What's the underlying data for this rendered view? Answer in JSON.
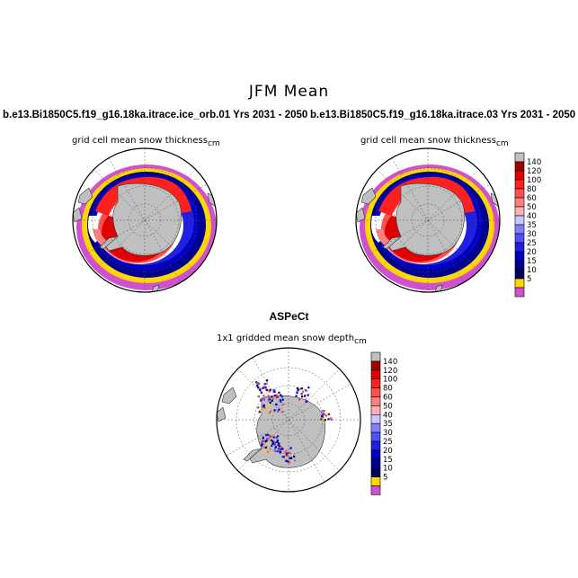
{
  "page_title": "JFM Mean",
  "units": "cm",
  "chart_data": [
    {
      "type": "heatmap",
      "id": "panel-left",
      "title": "b.e13.Bi1850C5.f19_g16.18ka.itrace.ice_orb.01  Yrs 2031 - 2050",
      "subtitle": "grid cell mean snow thickness",
      "projection": "south-polar-stereographic",
      "variable": "snow thickness"
    },
    {
      "type": "heatmap",
      "id": "panel-right",
      "title": "b.e13.Bi1850C5.f19_g16.18ka.itrace.03  Yrs 2031 - 2050",
      "subtitle": "grid cell mean snow thickness",
      "projection": "south-polar-stereographic",
      "variable": "snow thickness"
    },
    {
      "type": "heatmap",
      "id": "panel-bottom",
      "title": "ASPeCt",
      "subtitle": "1x1 gridded mean snow depth",
      "projection": "south-polar-stereographic",
      "variable": "snow depth"
    }
  ],
  "colorbar": {
    "labels": [
      "140",
      "120",
      "100",
      "80",
      "60",
      "50",
      "40",
      "35",
      "30",
      "25",
      "20",
      "15",
      "10",
      "5"
    ],
    "colors": [
      "#c0c0c0",
      "#a00000",
      "#e00000",
      "#ff2020",
      "#ff5050",
      "#ff8080",
      "#ffb0b0",
      "#c8c8ff",
      "#8080ff",
      "#5050ff",
      "#2020e0",
      "#0000c0",
      "#000090",
      "#000060",
      "#ffd700",
      "#d050d0"
    ]
  }
}
